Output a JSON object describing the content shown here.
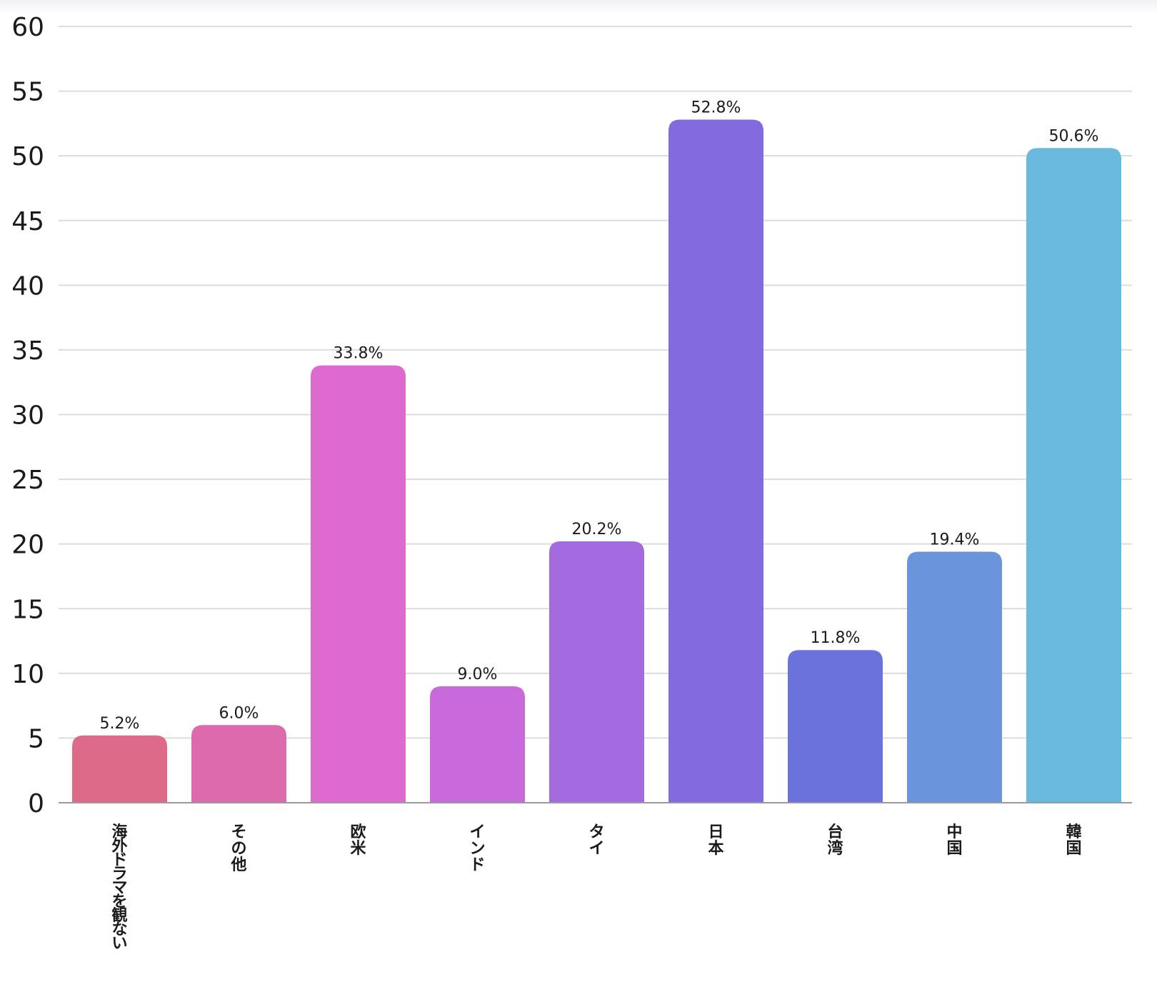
{
  "chart_data": {
    "type": "bar",
    "title": "",
    "xlabel": "",
    "ylabel": "",
    "ylim": [
      0,
      60
    ],
    "yticks": [
      0,
      5,
      10,
      15,
      20,
      25,
      30,
      35,
      40,
      45,
      50,
      55,
      60
    ],
    "grid": true,
    "categories": [
      "海外ドラマを観ない",
      "その他",
      "欧米",
      "インド",
      "タイ",
      "日本",
      "台湾",
      "中国",
      "韓国"
    ],
    "values": [
      5.2,
      6.0,
      33.8,
      9.0,
      20.2,
      52.8,
      11.8,
      19.4,
      50.6
    ],
    "value_labels": [
      "5.2%",
      "6.0%",
      "33.8%",
      "9.0%",
      "20.2%",
      "52.8%",
      "11.8%",
      "19.4%",
      "50.6%"
    ],
    "colors": [
      "#dd6a89",
      "#dc6aac",
      "#dc6acf",
      "#c86adc",
      "#a46adf",
      "#836ade",
      "#6a72dc",
      "#6a95dc",
      "#6ab8dc"
    ]
  }
}
